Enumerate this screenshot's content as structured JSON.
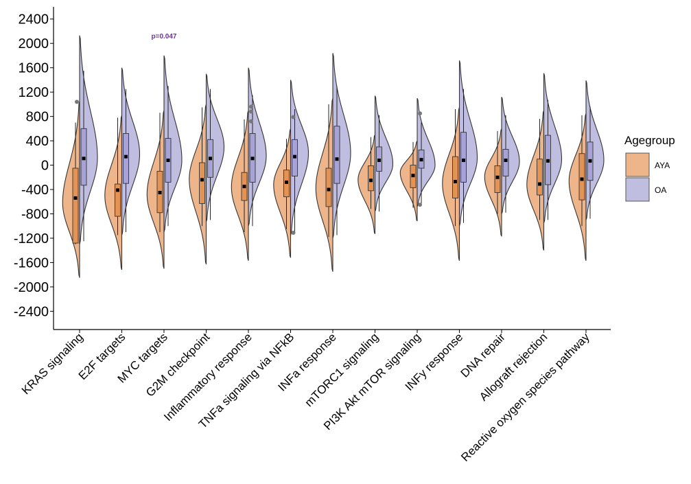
{
  "chart_data": {
    "type": "split-violin",
    "title": "",
    "xlabel": "",
    "ylabel": "",
    "ylim": [
      -2700,
      2600
    ],
    "yticks": [
      2400,
      2000,
      1600,
      1200,
      800,
      400,
      0,
      -400,
      -800,
      -1200,
      -1600,
      -2000,
      -2400
    ],
    "ytick_labels": [
      "2400",
      "2000",
      "1600",
      "1200",
      "800",
      "400",
      "0",
      "-400",
      "-800",
      "-1200",
      "-1600",
      "-2000",
      "-2400"
    ],
    "categories": [
      "KRAS signaling",
      "E2F targets",
      "MYC targets",
      "G2M checkpoint",
      "Inflammatory response",
      "TNFa signaling via NFkB",
      "INFa response",
      "mTORC1 signaling",
      "PI3K Akt mTOR signaling",
      "INFy response",
      "DNA repair",
      "Allograft rejection",
      "Reactive oxygen species pathway"
    ],
    "legend": {
      "title": "Agegroup",
      "position": "right",
      "entries": [
        {
          "label": "AYA",
          "color": "#eeb58b"
        },
        {
          "label": "OA",
          "color": "#bfbde0"
        }
      ]
    },
    "annotations": [
      {
        "text": "p=0.047",
        "category": "MYC targets",
        "y": 2080,
        "color": "#7030a0"
      }
    ],
    "series": [
      {
        "name": "AYA",
        "color": "#eeb58b",
        "box_color": "#e39455",
        "violins": [
          {
            "min": -1850,
            "max": 1050,
            "peak": -620,
            "median": -540,
            "q1": -1280,
            "q3": -50,
            "wlow": -1300,
            "whigh": 700,
            "outliers": [
              1040
            ]
          },
          {
            "min": -1720,
            "max": 820,
            "peak": -500,
            "median": -410,
            "q1": -840,
            "q3": -310,
            "wlow": -1150,
            "whigh": 780,
            "outliers": []
          },
          {
            "min": -1700,
            "max": 900,
            "peak": -480,
            "median": -450,
            "q1": -780,
            "q3": -100,
            "wlow": -1100,
            "whigh": 860,
            "outliers": []
          },
          {
            "min": -1630,
            "max": 1000,
            "peak": -230,
            "median": -240,
            "q1": -630,
            "q3": 40,
            "wlow": -1000,
            "whigh": 950,
            "outliers": []
          },
          {
            "min": -1570,
            "max": 900,
            "peak": -360,
            "median": -350,
            "q1": -580,
            "q3": -120,
            "wlow": -1100,
            "whigh": 750,
            "outliers": []
          },
          {
            "min": -1520,
            "max": 600,
            "peak": -320,
            "median": -280,
            "q1": -520,
            "q3": -80,
            "wlow": -1050,
            "whigh": 430,
            "outliers": []
          },
          {
            "min": -1750,
            "max": 1100,
            "peak": -380,
            "median": -400,
            "q1": -680,
            "q3": -50,
            "wlow": -1180,
            "whigh": 1000,
            "outliers": []
          },
          {
            "min": -1130,
            "max": 500,
            "peak": -240,
            "median": -250,
            "q1": -420,
            "q3": -10,
            "wlow": -720,
            "whigh": 460,
            "outliers": []
          },
          {
            "min": -920,
            "max": 400,
            "peak": -120,
            "median": -170,
            "q1": -370,
            "q3": 0,
            "wlow": -700,
            "whigh": 380,
            "outliers": []
          },
          {
            "min": -1570,
            "max": 950,
            "peak": -300,
            "median": -270,
            "q1": -540,
            "q3": 140,
            "wlow": -1000,
            "whigh": 920,
            "outliers": []
          },
          {
            "min": -1170,
            "max": 600,
            "peak": -190,
            "median": -200,
            "q1": -450,
            "q3": -10,
            "wlow": -800,
            "whigh": 560,
            "outliers": []
          },
          {
            "min": -1400,
            "max": 900,
            "peak": -320,
            "median": -310,
            "q1": -490,
            "q3": 100,
            "wlow": -900,
            "whigh": 760,
            "outliers": []
          },
          {
            "min": -1570,
            "max": 850,
            "peak": -260,
            "median": -230,
            "q1": -570,
            "q3": 190,
            "wlow": -1000,
            "whigh": 820,
            "outliers": []
          }
        ]
      },
      {
        "name": "OA",
        "color": "#bfbde0",
        "box_color": "#a7a3d6",
        "violins": [
          {
            "min": -1300,
            "max": 2130,
            "peak": 120,
            "median": 110,
            "q1": -330,
            "q3": 600,
            "wlow": -1250,
            "whigh": 1550,
            "outliers": []
          },
          {
            "min": -1150,
            "max": 1600,
            "peak": 180,
            "median": 140,
            "q1": -300,
            "q3": 520,
            "wlow": -1100,
            "whigh": 1250,
            "outliers": []
          },
          {
            "min": -1100,
            "max": 1800,
            "peak": 80,
            "median": 80,
            "q1": -280,
            "q3": 440,
            "wlow": -1000,
            "whigh": 1300,
            "outliers": []
          },
          {
            "min": -930,
            "max": 1500,
            "peak": 300,
            "median": 110,
            "q1": -200,
            "q3": 420,
            "wlow": -900,
            "whigh": 1250,
            "outliers": []
          },
          {
            "min": -1000,
            "max": 1600,
            "peak": 150,
            "median": 110,
            "q1": -280,
            "q3": 520,
            "wlow": -1000,
            "whigh": 1150,
            "outliers": [
              960,
              880,
              720
            ]
          },
          {
            "min": -1150,
            "max": 1400,
            "peak": 200,
            "median": 140,
            "q1": -180,
            "q3": 420,
            "wlow": -1100,
            "whigh": 920,
            "outliers": [
              790,
              -1110
            ]
          },
          {
            "min": -1200,
            "max": 1840,
            "peak": 200,
            "median": 100,
            "q1": -300,
            "q3": 640,
            "wlow": -1150,
            "whigh": 1300,
            "outliers": []
          },
          {
            "min": -760,
            "max": 1140,
            "peak": 20,
            "median": 80,
            "q1": -100,
            "q3": 300,
            "wlow": -760,
            "whigh": 820,
            "outliers": []
          },
          {
            "min": -680,
            "max": 1100,
            "peak": 0,
            "median": 90,
            "q1": -50,
            "q3": 250,
            "wlow": -650,
            "whigh": 700,
            "outliers": [
              850,
              -650
            ]
          },
          {
            "min": -1000,
            "max": 1720,
            "peak": 120,
            "median": 80,
            "q1": -280,
            "q3": 540,
            "wlow": -950,
            "whigh": 1250,
            "outliers": []
          },
          {
            "min": -800,
            "max": 1120,
            "peak": 60,
            "median": 80,
            "q1": -180,
            "q3": 260,
            "wlow": -780,
            "whigh": 820,
            "outliers": []
          },
          {
            "min": -950,
            "max": 1510,
            "peak": 100,
            "median": 70,
            "q1": -320,
            "q3": 490,
            "wlow": -900,
            "whigh": 1070,
            "outliers": []
          },
          {
            "min": -900,
            "max": 1390,
            "peak": 80,
            "median": 70,
            "q1": -250,
            "q3": 380,
            "wlow": -880,
            "whigh": 960,
            "outliers": []
          }
        ]
      }
    ]
  }
}
